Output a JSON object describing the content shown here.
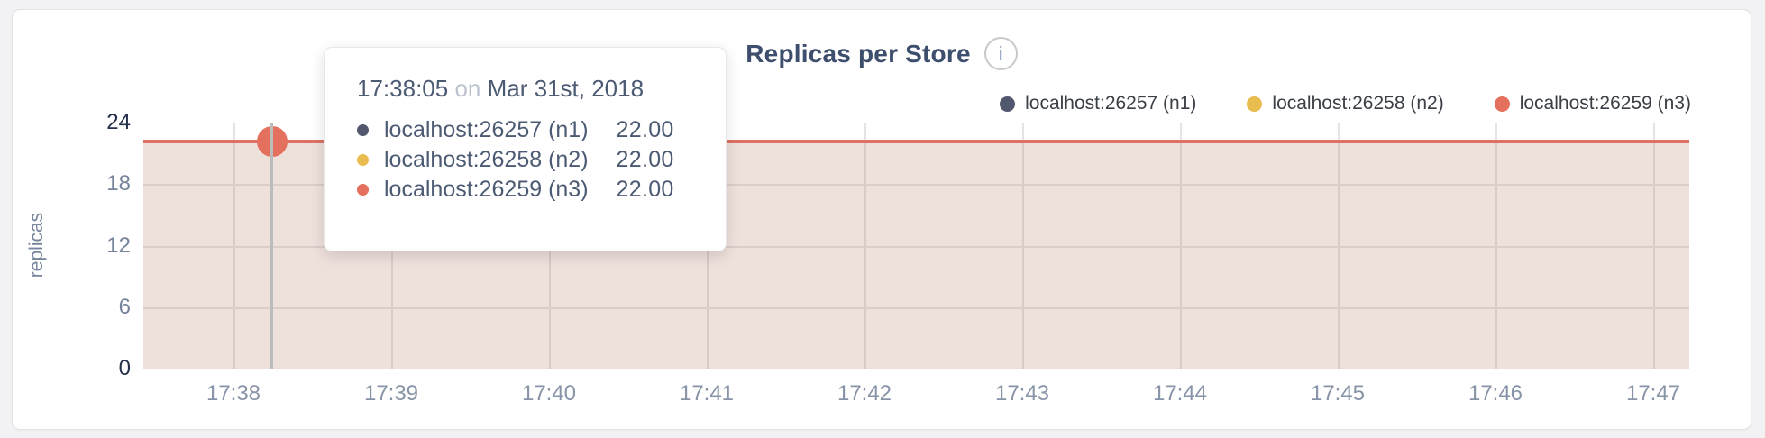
{
  "panel": {
    "title": "Replicas per Store",
    "info_icon_glyph": "i"
  },
  "legend": [
    {
      "label": "localhost:26257 (n1)",
      "color": "#51586e"
    },
    {
      "label": "localhost:26258 (n2)",
      "color": "#e9bc4f"
    },
    {
      "label": "localhost:26259 (n3)",
      "color": "#e4705e"
    }
  ],
  "tooltip": {
    "time": "17:38:05",
    "on_word": "on",
    "date": "Mar 31st, 2018",
    "rows": [
      {
        "label": "localhost:26257 (n1)",
        "value": "22.00",
        "color": "#51586e"
      },
      {
        "label": "localhost:26258 (n2)",
        "value": "22.00",
        "color": "#e9bc4f"
      },
      {
        "label": "localhost:26259 (n3)",
        "value": "22.00",
        "color": "#e4705e"
      }
    ]
  },
  "chart_data": {
    "type": "area",
    "title": "Replicas per Store",
    "xlabel": "",
    "ylabel": "replicas",
    "ylim": [
      0,
      24
    ],
    "yticks": [
      0,
      6,
      12,
      18,
      24
    ],
    "grid": true,
    "legend_position": "top-right",
    "categories": [
      "17:38",
      "17:39",
      "17:40",
      "17:41",
      "17:42",
      "17:43",
      "17:44",
      "17:45",
      "17:46",
      "17:47"
    ],
    "series": [
      {
        "name": "localhost:26257 (n1)",
        "color": "#51586e",
        "values": [
          22,
          22,
          22,
          22,
          22,
          22,
          22,
          22,
          22,
          22
        ]
      },
      {
        "name": "localhost:26258 (n2)",
        "color": "#e9bc4f",
        "values": [
          22,
          22,
          22,
          22,
          22,
          22,
          22,
          22,
          22,
          22
        ]
      },
      {
        "name": "localhost:26259 (n3)",
        "color": "#e4705e",
        "values": [
          22,
          22,
          22,
          22,
          22,
          22,
          22,
          22,
          22,
          22
        ]
      }
    ],
    "line_color": "#dd7164",
    "fill_color": "rgba(176,116,92,0.22)",
    "hovered_point": {
      "time": "17:38:05",
      "date": "Mar 31st, 2018",
      "value": 22
    }
  }
}
